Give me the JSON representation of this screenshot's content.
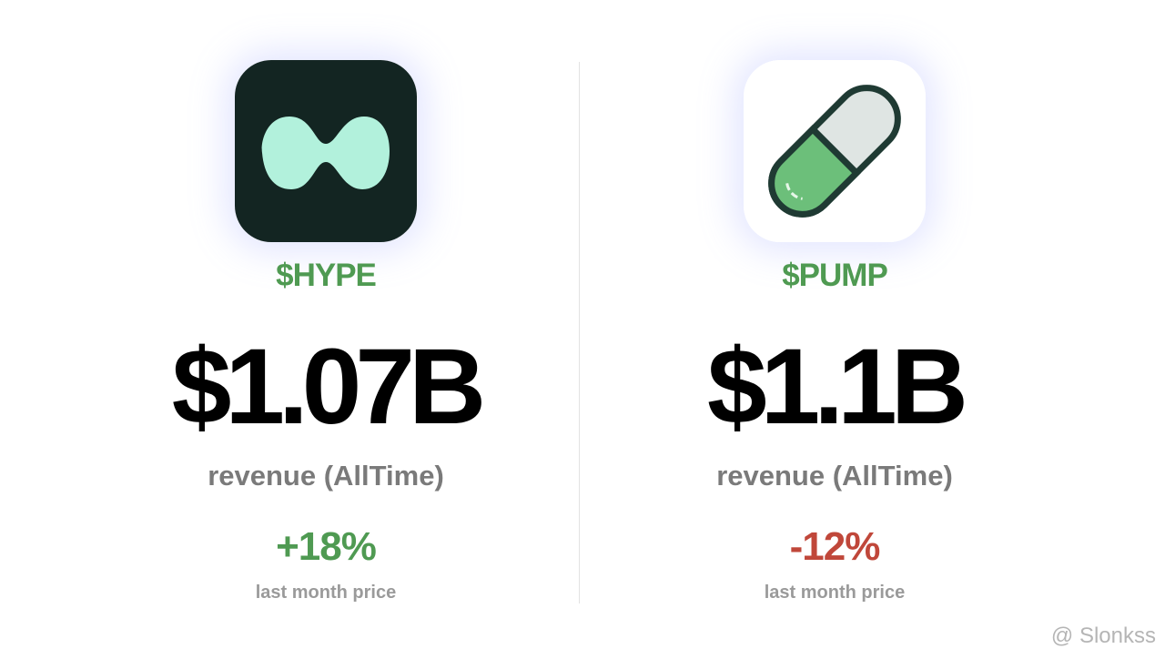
{
  "cards": [
    {
      "ticker": "$HYPE",
      "value": "$1.07B",
      "metric": "revenue (AllTime)",
      "change": "+18%",
      "change_label": "last month price"
    },
    {
      "ticker": "$PUMP",
      "value": "$1.1B",
      "metric": "revenue (AllTime)",
      "change": "-12%",
      "change_label": "last month price"
    }
  ],
  "watermark": "@ Slonkss"
}
